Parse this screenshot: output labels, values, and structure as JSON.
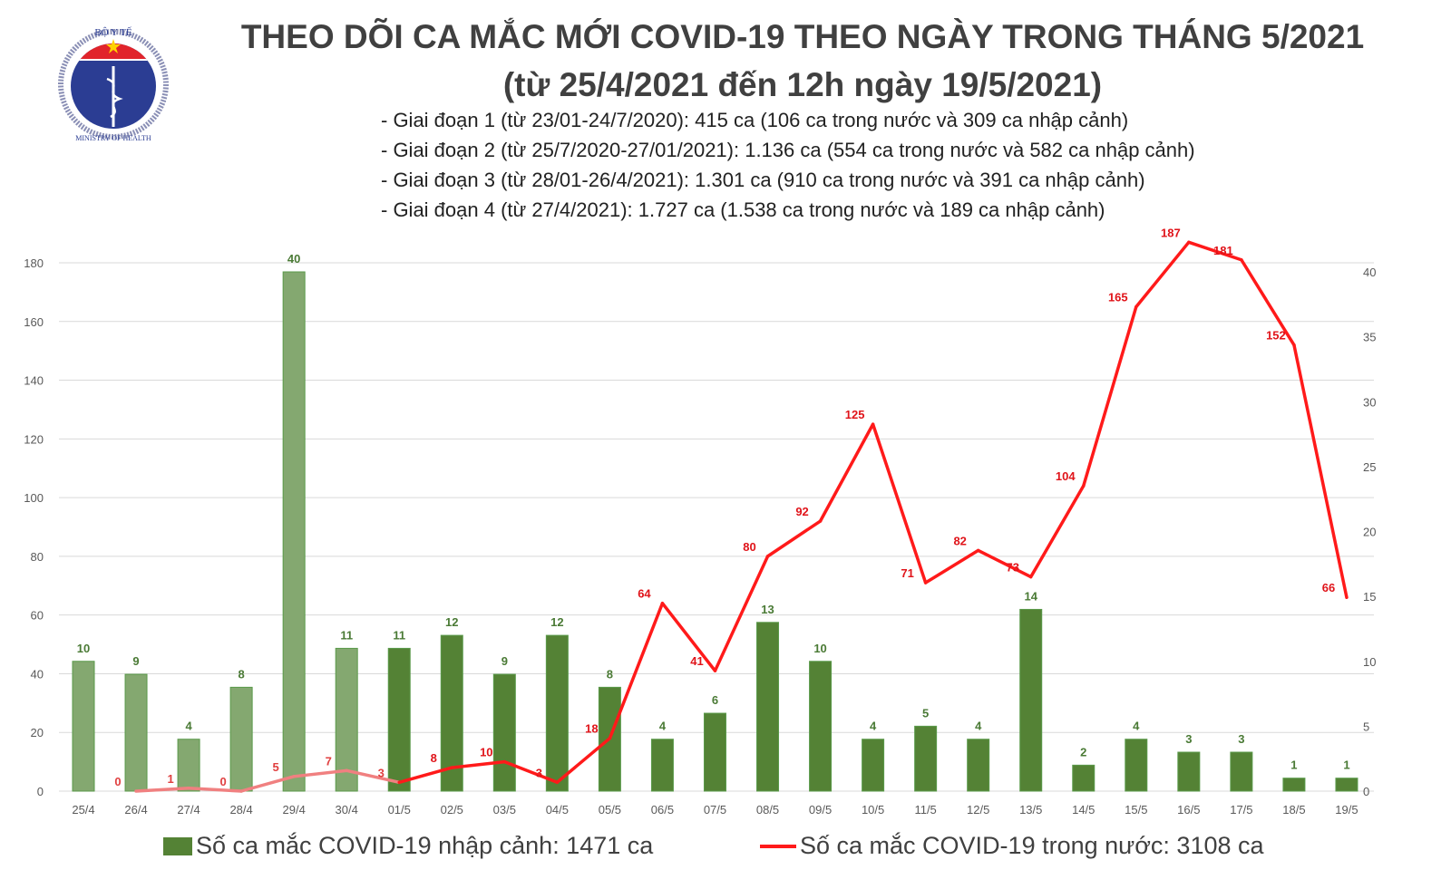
{
  "logo": {
    "top_text": "BỘ Y TẾ",
    "bottom_text": "MINISTRY OF HEALTH"
  },
  "title": "THEO DÕI CA MẮC MỚI COVID-19 THEO NGÀY TRONG THÁNG 5/2021",
  "subtitle": "(từ 25/4/2021 đến 12h ngày 19/5/2021)",
  "notes": [
    "- Giai đoạn 1 (từ 23/01-24/7/2020): 415 ca (106 ca trong nước và 309 ca nhập cảnh)",
    "- Giai đoạn 2 (từ 25/7/2020-27/01/2021): 1.136 ca (554 ca trong nước và 582 ca nhập cảnh)",
    "- Giai đoạn 3 (từ 28/01-26/4/2021): 1.301 ca (910 ca trong nước và 391 ca nhập cảnh)",
    "- Giai đoạn 4 (từ 27/4/2021): 1.727 ca (1.538 ca trong nước và 189 ca nhập cảnh)"
  ],
  "chart_data": {
    "type": "bar+line",
    "categories": [
      "25/4",
      "26/4",
      "27/4",
      "28/4",
      "29/4",
      "30/4",
      "01/5",
      "02/5",
      "03/5",
      "04/5",
      "05/5",
      "06/5",
      "07/5",
      "08/5",
      "09/5",
      "10/5",
      "11/5",
      "12/5",
      "13/5",
      "14/5",
      "15/5",
      "16/5",
      "17/5",
      "18/5",
      "19/5"
    ],
    "series": [
      {
        "name": "Số ca mắc COVID-19 nhập cảnh: 1471 ca",
        "type": "bar",
        "axis": "right",
        "color": "#548235",
        "color_early": "#84a870",
        "values": [
          10,
          9,
          4,
          8,
          40,
          11,
          11,
          12,
          9,
          12,
          8,
          4,
          6,
          13,
          10,
          4,
          5,
          4,
          14,
          2,
          4,
          3,
          3,
          1,
          1
        ]
      },
      {
        "name": "Số ca mắc COVID-19 trong nước: 3108 ca",
        "type": "line",
        "axis": "left",
        "color": "#ff1a1a",
        "color_early": "#f08080",
        "values": [
          null,
          0,
          1,
          0,
          5,
          7,
          3,
          8,
          10,
          3,
          18,
          64,
          41,
          80,
          92,
          125,
          71,
          82,
          73,
          104,
          165,
          187,
          181,
          152,
          66
        ]
      }
    ],
    "left_axis": {
      "ylim": [
        0,
        180
      ],
      "ticks": [
        0,
        20,
        40,
        60,
        80,
        100,
        120,
        140,
        160,
        180
      ]
    },
    "right_axis": {
      "ylim": [
        0,
        40
      ],
      "ticks": [
        0,
        5,
        10,
        15,
        20,
        25,
        30,
        35,
        40
      ]
    },
    "grid": true,
    "legend": "bottom"
  }
}
